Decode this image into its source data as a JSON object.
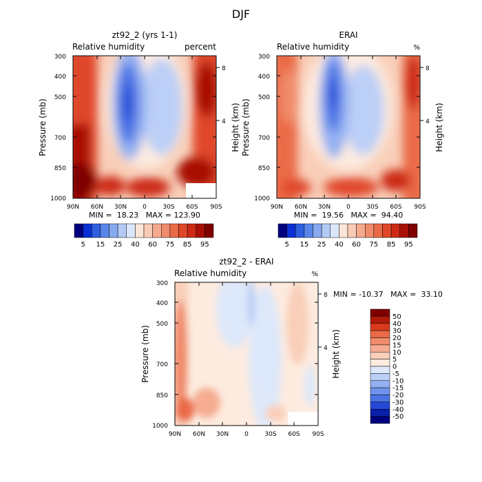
{
  "figure_title": "DJF",
  "chart_data": [
    {
      "type": "contour",
      "title": "zt92_2 (yrs 1-1)",
      "subtitle": "Relative humidity",
      "units": "percent",
      "ylabel": "Pressure (mb)",
      "y2label": "Height (km)",
      "x_ticks": [
        "90N",
        "60N",
        "30N",
        "0",
        "30S",
        "60S",
        "90S"
      ],
      "y_ticks": [
        "300",
        "400",
        "500",
        "700",
        "850",
        "1000"
      ],
      "y2_ticks": [
        "8",
        "4"
      ],
      "ylim": [
        1000,
        300
      ],
      "stats": "MIN =  18.23   MAX = 123.90",
      "colorbar_labels": [
        "5",
        "15",
        "25",
        "40",
        "60",
        "75",
        "85",
        "95"
      ],
      "colorbar_colors": [
        "#00007f",
        "#0a2fd4",
        "#2f5fe0",
        "#5a86ea",
        "#86a9f0",
        "#b3caf5",
        "#dbe6fa",
        "#fbe5d6",
        "#f8cbb5",
        "#f5a98d",
        "#f08b6b",
        "#ea6a47",
        "#e0472a",
        "#cc2a14",
        "#a81005",
        "#7f0000"
      ]
    },
    {
      "type": "contour",
      "title": "ERAI",
      "subtitle": "Relative humidity",
      "units": "%",
      "ylabel": "Pressure (mb)",
      "y2label": "Height (km)",
      "x_ticks": [
        "90N",
        "60N",
        "30N",
        "0",
        "30S",
        "60S",
        "90S"
      ],
      "y_ticks": [
        "300",
        "400",
        "500",
        "700",
        "850",
        "1000"
      ],
      "y2_ticks": [
        "8",
        "4"
      ],
      "ylim": [
        1000,
        300
      ],
      "stats": "MIN =  19.56   MAX =  94.40",
      "colorbar_labels": [
        "5",
        "15",
        "25",
        "40",
        "60",
        "75",
        "85",
        "95"
      ],
      "colorbar_colors": [
        "#00007f",
        "#0a2fd4",
        "#2f5fe0",
        "#5a86ea",
        "#86a9f0",
        "#b3caf5",
        "#dbe6fa",
        "#fbe5d6",
        "#f8cbb5",
        "#f5a98d",
        "#f08b6b",
        "#ea6a47",
        "#e0472a",
        "#cc2a14",
        "#a81005",
        "#7f0000"
      ]
    },
    {
      "type": "contour",
      "title": "zt92_2 - ERAI",
      "subtitle": "Relative humidity",
      "units": "%",
      "ylabel": "Pressure (mb)",
      "y2label": "Height (km)",
      "x_ticks": [
        "90N",
        "60N",
        "30N",
        "0",
        "30S",
        "60S",
        "90S"
      ],
      "y_ticks": [
        "300",
        "400",
        "500",
        "700",
        "850",
        "1000"
      ],
      "y2_ticks": [
        "8",
        "4"
      ],
      "ylim": [
        1000,
        300
      ],
      "stats": "MIN = -10.37   MAX =  33.10",
      "colorbar_labels": [
        "50",
        "40",
        "30",
        "20",
        "15",
        "10",
        "5",
        "0",
        "-5",
        "-10",
        "-15",
        "-20",
        "-30",
        "-40",
        "-50"
      ],
      "colorbar_colors": [
        "#7f0000",
        "#b01a0a",
        "#d93a1c",
        "#ea6a47",
        "#f08b6b",
        "#f5ac91",
        "#f9cfb9",
        "#fdebdf",
        "#dde8fa",
        "#bccff6",
        "#93b0f1",
        "#6f93ec",
        "#4b73e4",
        "#2548d6",
        "#0a1faa",
        "#00007f"
      ]
    }
  ]
}
